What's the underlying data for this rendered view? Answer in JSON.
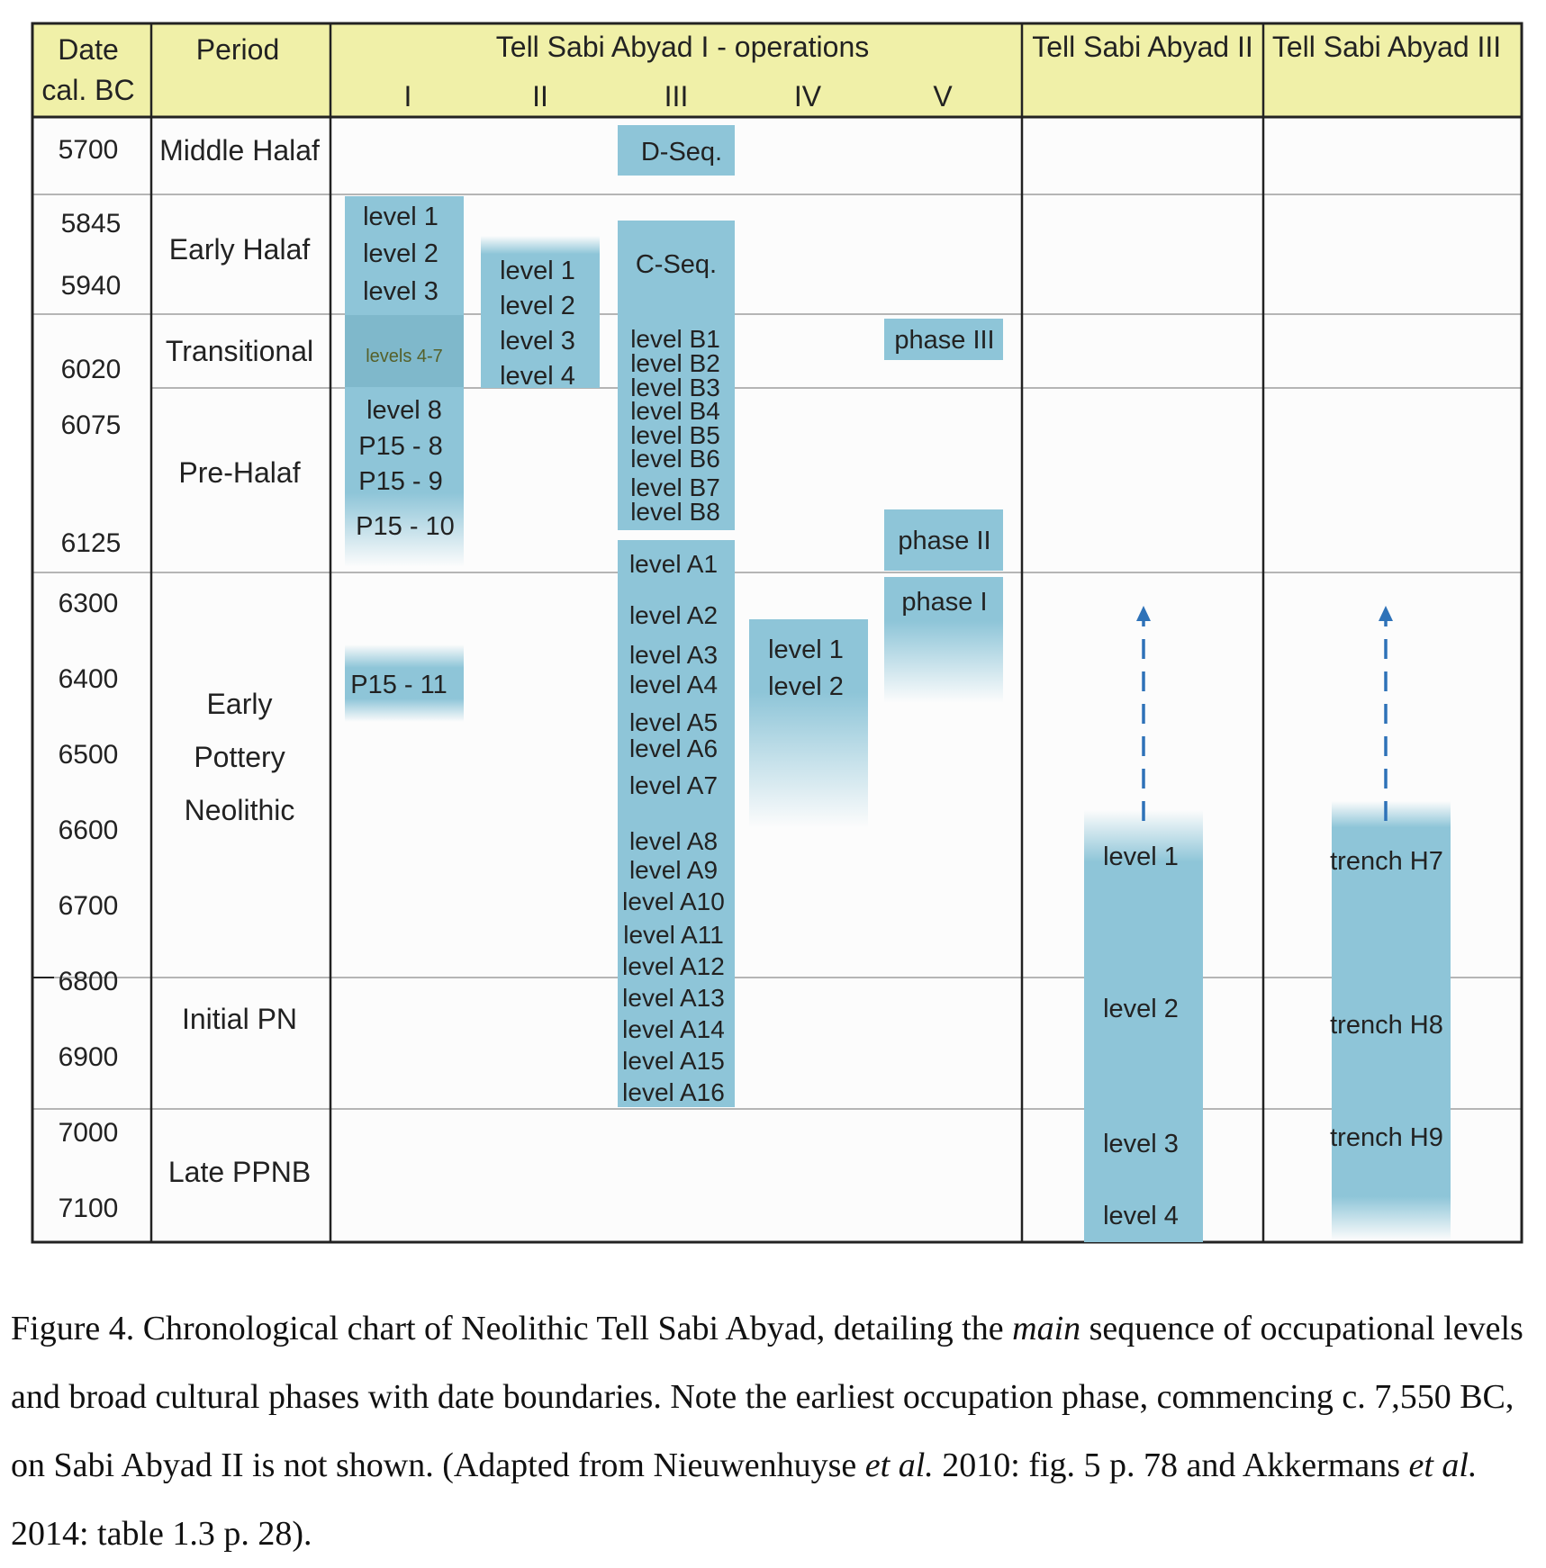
{
  "headers": {
    "date": [
      "Date",
      "cal. BC"
    ],
    "period": "Period",
    "tsa1": "Tell Sabi Abyad I - operations",
    "ops": [
      "I",
      "II",
      "III",
      "IV",
      "V"
    ],
    "tsa2": "Tell Sabi Abyad II",
    "tsa3": "Tell Sabi Abyad III"
  },
  "dates": [
    "5700",
    "5845",
    "5940",
    "6020",
    "6075",
    "6125",
    "6300",
    "6400",
    "6500",
    "6600",
    "6700",
    "6800",
    "6900",
    "7000",
    "7100"
  ],
  "periods": [
    "Middle Halaf",
    "Early Halaf",
    "Transitional",
    "Pre-Halaf",
    "Early",
    "Pottery",
    "Neolithic",
    "Initial PN",
    "Late PPNB"
  ],
  "blocks": {
    "opI": {
      "a": [
        "level 1",
        "level 2",
        "level 3"
      ],
      "b": "levels 4-7",
      "c": [
        "level 8",
        "P15 - 8",
        "P15 - 9",
        "P15 - 10"
      ],
      "d": "P15 - 11"
    },
    "opII": [
      "level 1",
      "level 2",
      "level 3",
      "level 4"
    ],
    "opIII": {
      "d": "D-Seq.",
      "c": "C-Seq.",
      "b": [
        "level  B1",
        "level  B2",
        "level  B3",
        "level  B4",
        "level  B5",
        "level  B6",
        "level  B7",
        "level  B8"
      ],
      "a": [
        "level A1",
        "level A2",
        "level A3",
        "level A4",
        "level A5",
        "level A6",
        "level A7",
        "level A8",
        "level A9",
        "level A10",
        "level A11",
        "level A12",
        "level A13",
        "level A14",
        "level A15",
        "level A16"
      ]
    },
    "opIV": [
      "level 1",
      "level 2"
    ],
    "opV": [
      "phase III",
      "phase II",
      "phase I"
    ],
    "tsa2": [
      "level 1",
      "level 2",
      "level 3",
      "level 4"
    ],
    "tsa3": [
      "trench H7",
      "trench H8",
      "trench H9"
    ]
  },
  "colors": {
    "header": "#f0f0a8",
    "block": "#8ec5d8",
    "arrow": "#2e72b8",
    "grid": "#b5b5b5",
    "border": "#222222"
  },
  "caption": {
    "p1": "Figure 4. Chronological chart of Neolithic Tell Sabi Abyad, detailing the ",
    "em1": "main",
    "p2": " sequence of occupational levels and broad cultural phases with date boundaries. Note the earliest occupation phase, commencing c. 7,550 BC, on Sabi Abyad II is not shown. (Adapted from Nieuwenhuyse ",
    "em2": "et al.",
    "p3": " 2010: fig. 5 p. 78 and Akkermans ",
    "em3": "et al.",
    "p4": " 2014: table 1.3 p. 28)."
  }
}
